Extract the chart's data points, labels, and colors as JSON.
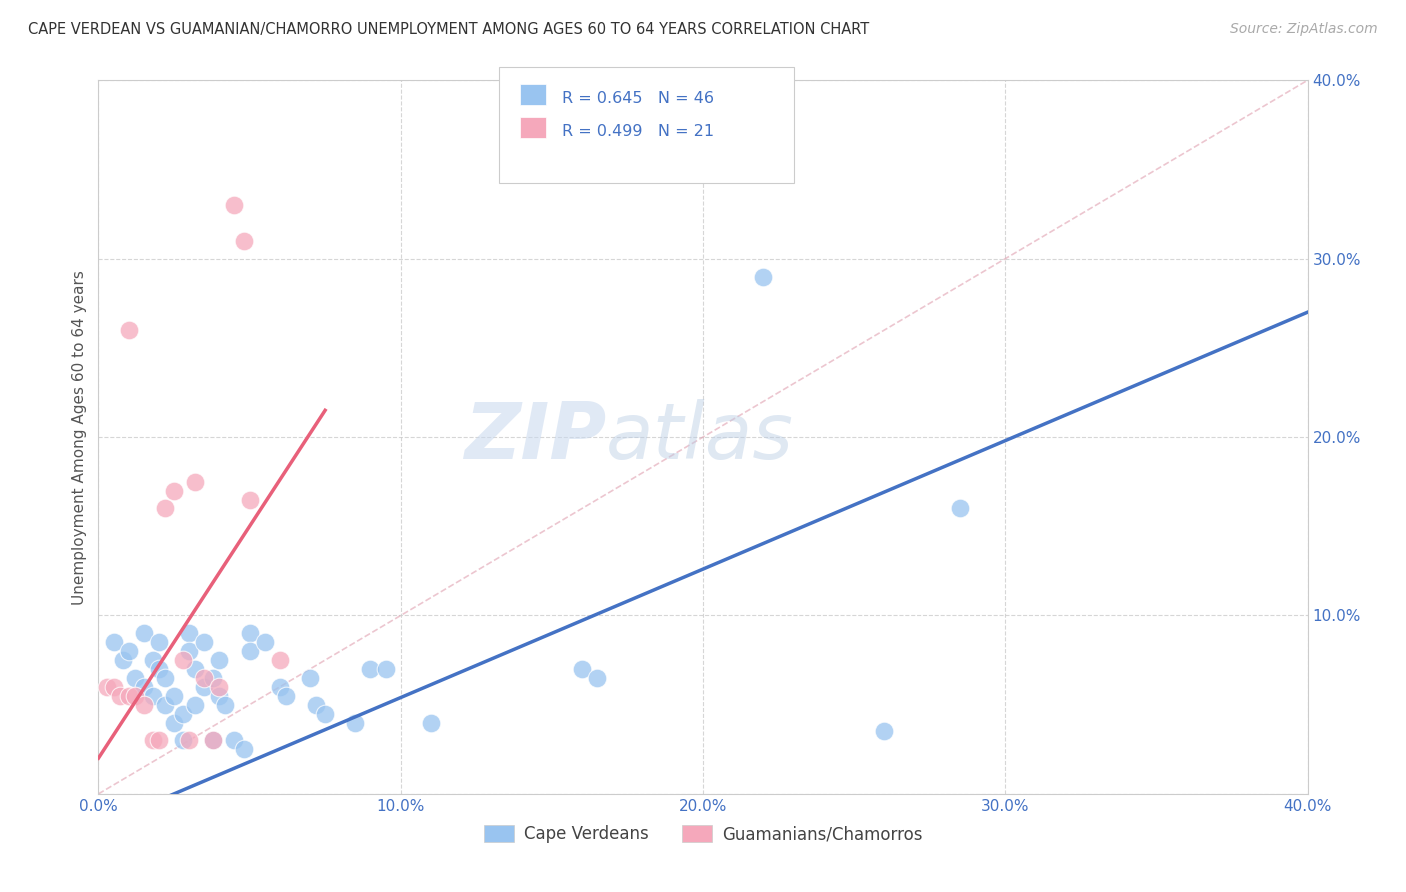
{
  "title": "CAPE VERDEAN VS GUAMANIAN/CHAMORRO UNEMPLOYMENT AMONG AGES 60 TO 64 YEARS CORRELATION CHART",
  "source": "Source: ZipAtlas.com",
  "ylabel": "Unemployment Among Ages 60 to 64 years",
  "xlim": [
    0.0,
    0.4
  ],
  "ylim": [
    0.0,
    0.4
  ],
  "xticks": [
    0.0,
    0.1,
    0.2,
    0.3,
    0.4
  ],
  "yticks": [
    0.1,
    0.2,
    0.3,
    0.4
  ],
  "xtick_labels": [
    "0.0%",
    "10.0%",
    "20.0%",
    "30.0%",
    "40.0%"
  ],
  "ytick_labels": [
    "10.0%",
    "20.0%",
    "30.0%",
    "40.0%"
  ],
  "background_color": "#ffffff",
  "grid_color": "#cccccc",
  "watermark_zip": "ZIP",
  "watermark_atlas": "atlas",
  "legend_R_blue": "0.645",
  "legend_N_blue": "46",
  "legend_R_pink": "0.499",
  "legend_N_pink": "21",
  "legend_label_blue": "Cape Verdeans",
  "legend_label_pink": "Guamanians/Chamorros",
  "blue_color": "#99C4F0",
  "pink_color": "#F5A8BB",
  "blue_line_color": "#4472C4",
  "pink_line_color": "#E8607A",
  "accent_color": "#4472C4",
  "blue_scatter": [
    [
      0.005,
      0.085
    ],
    [
      0.008,
      0.075
    ],
    [
      0.01,
      0.08
    ],
    [
      0.012,
      0.065
    ],
    [
      0.015,
      0.09
    ],
    [
      0.015,
      0.06
    ],
    [
      0.018,
      0.075
    ],
    [
      0.018,
      0.055
    ],
    [
      0.02,
      0.085
    ],
    [
      0.02,
      0.07
    ],
    [
      0.022,
      0.065
    ],
    [
      0.022,
      0.05
    ],
    [
      0.025,
      0.055
    ],
    [
      0.025,
      0.04
    ],
    [
      0.028,
      0.045
    ],
    [
      0.028,
      0.03
    ],
    [
      0.03,
      0.09
    ],
    [
      0.03,
      0.08
    ],
    [
      0.032,
      0.07
    ],
    [
      0.032,
      0.05
    ],
    [
      0.035,
      0.085
    ],
    [
      0.035,
      0.06
    ],
    [
      0.038,
      0.065
    ],
    [
      0.038,
      0.03
    ],
    [
      0.04,
      0.075
    ],
    [
      0.04,
      0.055
    ],
    [
      0.042,
      0.05
    ],
    [
      0.045,
      0.03
    ],
    [
      0.048,
      0.025
    ],
    [
      0.05,
      0.09
    ],
    [
      0.05,
      0.08
    ],
    [
      0.055,
      0.085
    ],
    [
      0.06,
      0.06
    ],
    [
      0.062,
      0.055
    ],
    [
      0.07,
      0.065
    ],
    [
      0.072,
      0.05
    ],
    [
      0.075,
      0.045
    ],
    [
      0.085,
      0.04
    ],
    [
      0.09,
      0.07
    ],
    [
      0.095,
      0.07
    ],
    [
      0.11,
      0.04
    ],
    [
      0.16,
      0.07
    ],
    [
      0.165,
      0.065
    ],
    [
      0.22,
      0.29
    ],
    [
      0.26,
      0.035
    ],
    [
      0.285,
      0.16
    ]
  ],
  "pink_scatter": [
    [
      0.003,
      0.06
    ],
    [
      0.005,
      0.06
    ],
    [
      0.007,
      0.055
    ],
    [
      0.01,
      0.26
    ],
    [
      0.01,
      0.055
    ],
    [
      0.012,
      0.055
    ],
    [
      0.015,
      0.05
    ],
    [
      0.018,
      0.03
    ],
    [
      0.02,
      0.03
    ],
    [
      0.022,
      0.16
    ],
    [
      0.025,
      0.17
    ],
    [
      0.028,
      0.075
    ],
    [
      0.03,
      0.03
    ],
    [
      0.032,
      0.175
    ],
    [
      0.035,
      0.065
    ],
    [
      0.038,
      0.03
    ],
    [
      0.04,
      0.06
    ],
    [
      0.045,
      0.33
    ],
    [
      0.048,
      0.31
    ],
    [
      0.05,
      0.165
    ],
    [
      0.06,
      0.075
    ]
  ],
  "blue_trend": [
    0.0,
    -0.018,
    0.4,
    0.27
  ],
  "pink_trend": [
    0.0,
    0.02,
    0.075,
    0.215
  ],
  "identity_line": [
    0.0,
    0.0,
    0.4,
    0.4
  ]
}
